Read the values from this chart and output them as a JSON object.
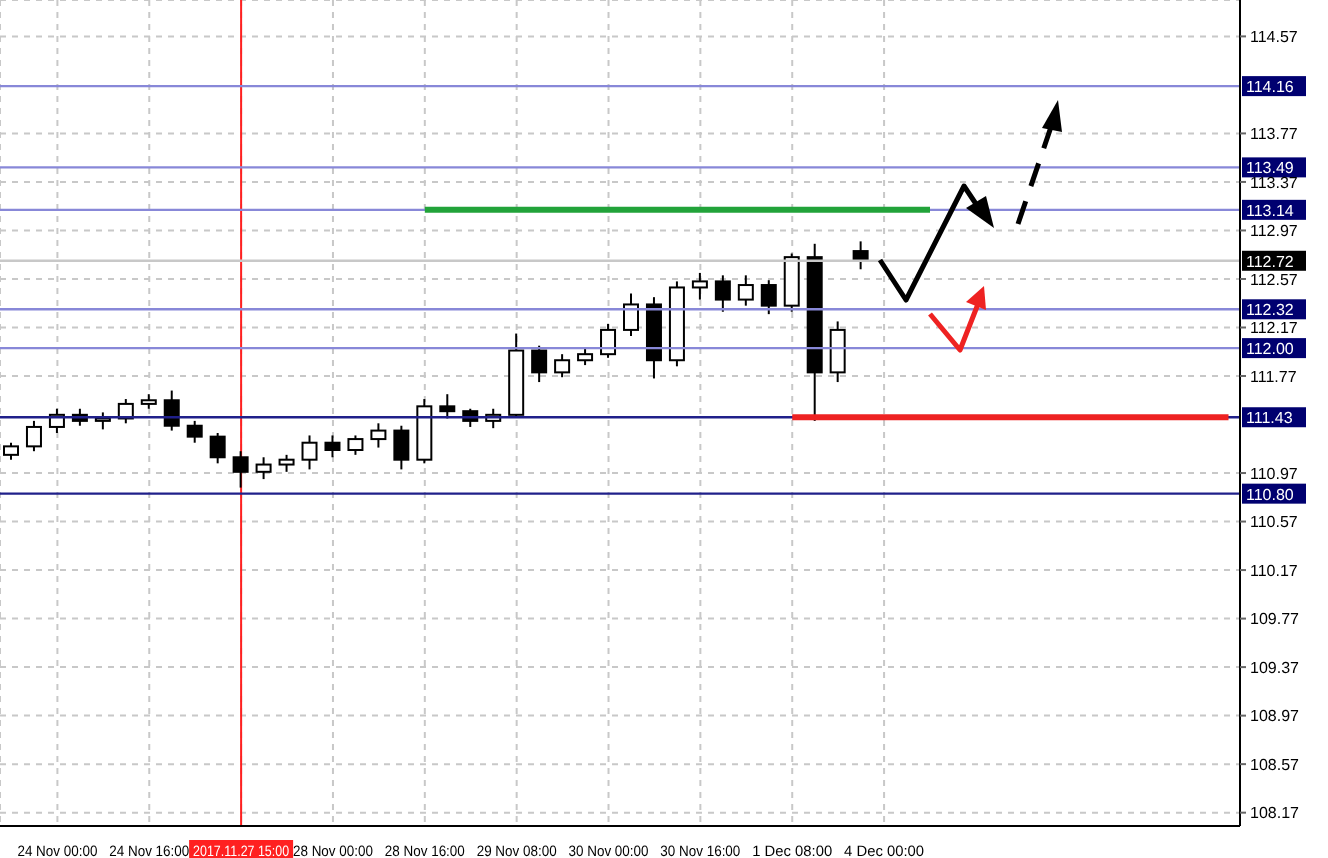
{
  "chart_data": {
    "type": "candlestick",
    "categories": [
      null,
      null,
      "24 Nov 00:00",
      null,
      null,
      null,
      "24 Nov 16:00",
      null,
      null,
      null,
      "2017.11.27 15:00",
      null,
      null,
      null,
      "28 Nov 00:00",
      null,
      null,
      null,
      "28 Nov 16:00",
      null,
      null,
      null,
      "29 Nov 08:00",
      null,
      null,
      null,
      "30 Nov 00:00",
      null,
      null,
      null,
      "30 Nov 16:00",
      null,
      null,
      null,
      "1 Dec 08:00",
      null,
      null,
      null,
      "4 Dec 00:00",
      null,
      null,
      null,
      null,
      null,
      null,
      null,
      null,
      null,
      null,
      null,
      null,
      null,
      null,
      null
    ],
    "ohlc": [
      [
        111.12,
        111.22,
        111.08,
        111.19
      ],
      [
        111.19,
        111.4,
        111.15,
        111.35
      ],
      [
        111.35,
        111.5,
        111.3,
        111.45
      ],
      [
        111.45,
        111.5,
        111.36,
        111.4
      ],
      [
        111.4,
        111.47,
        111.33,
        111.42
      ],
      [
        111.42,
        111.58,
        111.38,
        111.54
      ],
      [
        111.54,
        111.62,
        111.5,
        111.57
      ],
      [
        111.57,
        111.65,
        111.32,
        111.36
      ],
      [
        111.36,
        111.4,
        111.22,
        111.27
      ],
      [
        111.27,
        111.3,
        111.05,
        111.1
      ],
      [
        111.1,
        111.15,
        110.85,
        110.98
      ],
      [
        110.98,
        111.1,
        110.92,
        111.04
      ],
      [
        111.04,
        111.12,
        110.98,
        111.08
      ],
      [
        111.08,
        111.28,
        111.0,
        111.22
      ],
      [
        111.22,
        111.28,
        111.1,
        111.16
      ],
      [
        111.16,
        111.28,
        111.12,
        111.25
      ],
      [
        111.25,
        111.38,
        111.18,
        111.32
      ],
      [
        111.32,
        111.36,
        111.0,
        111.08
      ],
      [
        111.08,
        111.58,
        111.05,
        111.52
      ],
      [
        111.52,
        111.62,
        111.42,
        111.48
      ],
      [
        111.48,
        111.5,
        111.35,
        111.4
      ],
      [
        111.4,
        111.5,
        111.34,
        111.45
      ],
      [
        111.45,
        112.12,
        111.43,
        111.98
      ],
      [
        111.98,
        112.02,
        111.72,
        111.8
      ],
      [
        111.8,
        111.95,
        111.76,
        111.9
      ],
      [
        111.9,
        112.0,
        111.86,
        111.95
      ],
      [
        111.95,
        112.2,
        111.92,
        112.15
      ],
      [
        112.15,
        112.45,
        112.1,
        112.36
      ],
      [
        112.36,
        112.42,
        111.75,
        111.9
      ],
      [
        111.9,
        112.55,
        111.85,
        112.5
      ],
      [
        112.5,
        112.62,
        112.4,
        112.55
      ],
      [
        112.55,
        112.6,
        112.3,
        112.4
      ],
      [
        112.4,
        112.6,
        112.35,
        112.52
      ],
      [
        112.52,
        112.56,
        112.28,
        112.35
      ],
      [
        112.35,
        112.78,
        112.3,
        112.75
      ],
      [
        112.75,
        112.86,
        111.4,
        111.8
      ],
      [
        111.8,
        112.22,
        111.72,
        112.15
      ],
      [
        112.8,
        112.88,
        112.65,
        112.72
      ],
      null,
      null,
      null,
      null,
      null,
      null,
      null,
      null,
      null,
      null,
      null,
      null,
      null,
      null,
      null,
      null
    ],
    "series": [
      {
        "type": "line",
        "color": "#22a33a",
        "values": [
          null,
          null,
          null,
          null,
          null,
          null,
          null,
          null,
          null,
          null,
          null,
          null,
          null,
          null,
          null,
          null,
          null,
          null,
          113.14,
          113.14,
          113.14,
          113.14,
          113.14,
          113.14,
          113.14,
          113.14,
          113.14,
          113.14,
          113.14,
          113.14,
          113.14,
          113.14,
          113.14,
          113.14,
          113.14,
          113.14,
          113.14,
          113.14,
          113.14,
          113.14,
          113.14,
          null,
          null,
          null,
          null,
          null,
          null,
          null,
          null,
          null,
          null,
          null,
          null,
          null
        ]
      },
      {
        "type": "line",
        "color": "#ee2222",
        "values": [
          null,
          null,
          null,
          null,
          null,
          null,
          null,
          null,
          null,
          null,
          null,
          null,
          null,
          null,
          null,
          null,
          null,
          null,
          null,
          null,
          null,
          null,
          null,
          null,
          null,
          null,
          null,
          null,
          null,
          null,
          null,
          null,
          null,
          null,
          111.43,
          111.43,
          111.43,
          111.43,
          111.43,
          111.43,
          111.43,
          111.43,
          111.43,
          111.43,
          111.43,
          111.43,
          111.43,
          111.43,
          111.43,
          111.43,
          111.43,
          111.43,
          111.43,
          111.43
        ]
      }
    ],
    "ylim": [
      108.06,
      114.87
    ],
    "yticks": [
      114.57,
      113.77,
      113.37,
      112.97,
      112.57,
      112.17,
      111.77,
      110.97,
      110.57,
      110.17,
      109.77,
      109.37,
      108.97,
      108.57,
      108.17
    ],
    "ref_lines": [
      {
        "axis": "y",
        "value": 114.16,
        "label": "114.16",
        "color": "#8888d8"
      },
      {
        "axis": "y",
        "value": 113.49,
        "label": "113.49",
        "color": "#8888d8"
      },
      {
        "axis": "y",
        "value": 113.14,
        "label": "113.14",
        "color": "#8888d8"
      },
      {
        "axis": "y",
        "value": 112.72,
        "label": "112.72",
        "color": "#c8c8c8"
      },
      {
        "axis": "y",
        "value": 112.32,
        "label": "112.32",
        "color": "#8888d8"
      },
      {
        "axis": "y",
        "value": 112.0,
        "label": "112.00",
        "color": "#8888d8"
      },
      {
        "axis": "y",
        "value": 111.43,
        "label": "111.43",
        "color": "#20208a"
      },
      {
        "axis": "y",
        "value": 110.8,
        "label": "110.80",
        "color": "#20208a"
      },
      {
        "axis": "x",
        "value": "2017.11.27 15:00",
        "color": "#ff2020"
      }
    ],
    "grid": true
  }
}
